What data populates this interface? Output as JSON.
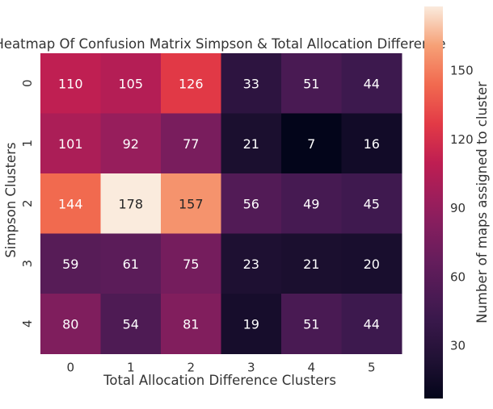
{
  "chart_data": {
    "type": "heatmap",
    "title": "Heatmap Of Confusion Matrix Simpson & Total Allocation Difference",
    "xlabel": "Total Allocation Difference Clusters",
    "ylabel": "Simpson Clusters",
    "x_categories": [
      "0",
      "1",
      "2",
      "3",
      "4",
      "5"
    ],
    "y_categories": [
      "0",
      "1",
      "2",
      "3",
      "4"
    ],
    "values": [
      [
        110,
        105,
        126,
        33,
        51,
        44
      ],
      [
        101,
        92,
        77,
        21,
        7,
        16
      ],
      [
        144,
        178,
        157,
        56,
        49,
        45
      ],
      [
        59,
        61,
        75,
        23,
        21,
        20
      ],
      [
        80,
        54,
        81,
        19,
        51,
        44
      ]
    ],
    "colorbar": {
      "label": "Number of maps assigned to cluster",
      "range": [
        7,
        178
      ],
      "ticks": [
        30,
        60,
        90,
        120,
        150
      ],
      "colormap": "rocket"
    }
  }
}
